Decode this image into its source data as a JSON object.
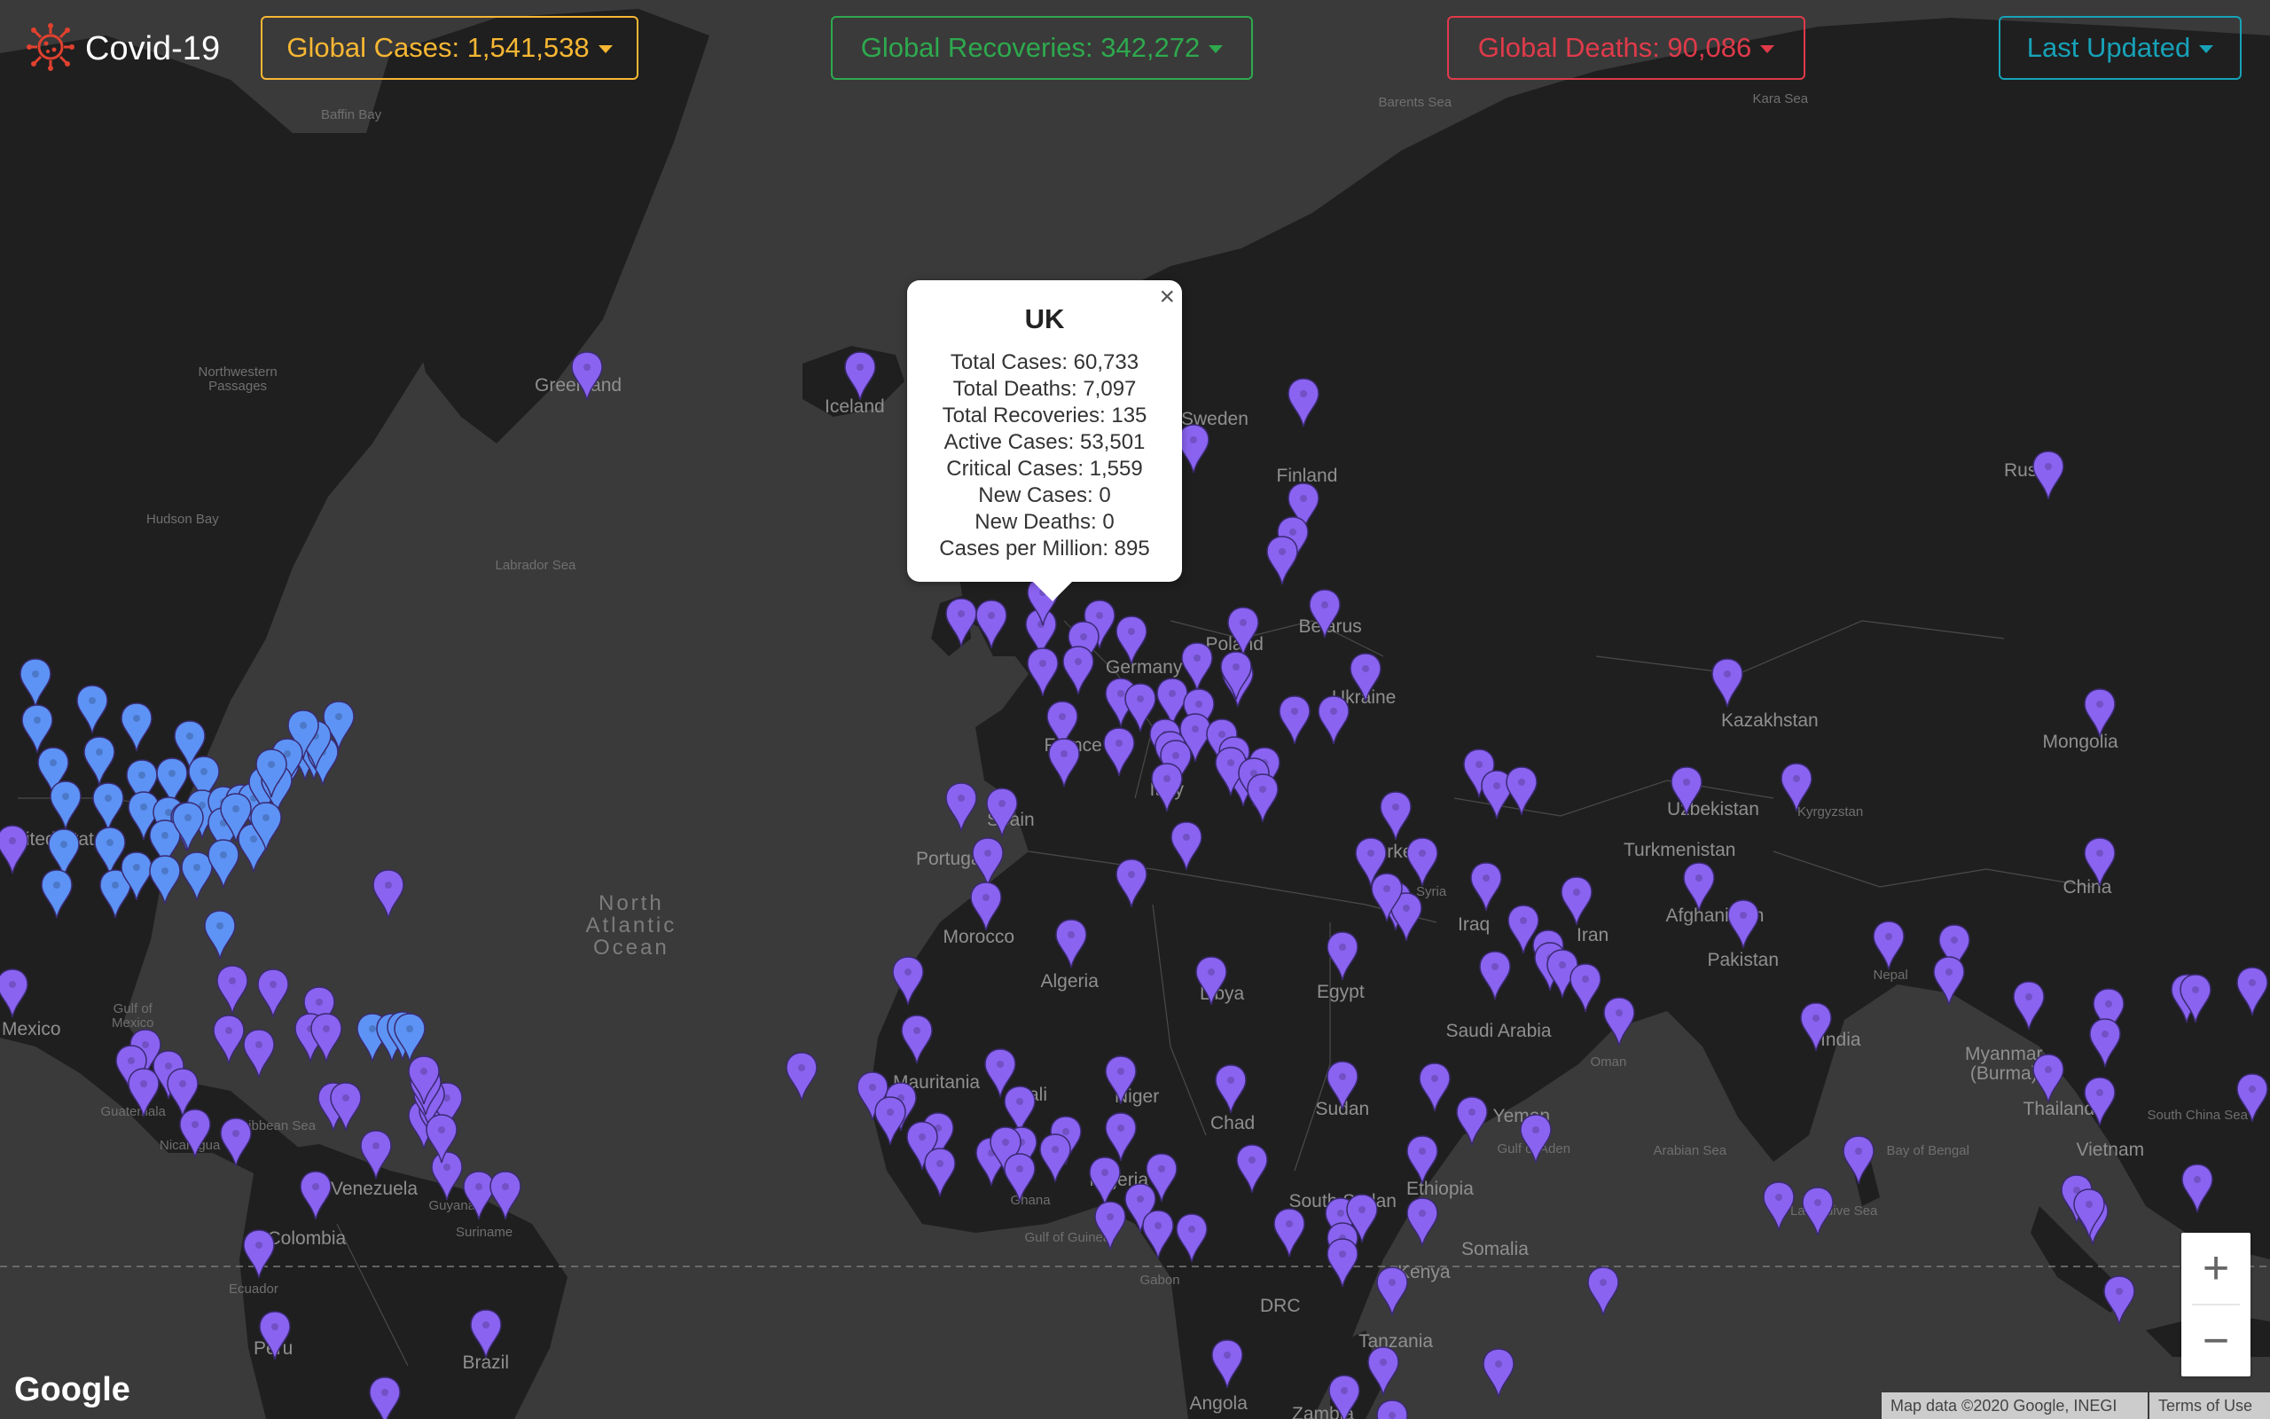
{
  "header": {
    "app_title": "Covid-19",
    "logo_icon": "virus-icon",
    "global_cases": "Global Cases: 1,541,538",
    "global_recoveries": "Global Recoveries: 342,272",
    "global_deaths": "Global Deaths: 90,086",
    "last_updated": "Last Updated"
  },
  "colors": {
    "cases": "#f7b733",
    "recoveries": "#2ea94e",
    "deaths": "#e03a4a",
    "updated": "#17a2b8",
    "pin_purple": "#8a63f0",
    "pin_blue": "#5d93f5"
  },
  "popup": {
    "country": "UK",
    "lines": [
      "Total Cases: 60,733",
      "Total Deaths: 7,097",
      "Total Recoveries: 135",
      "Active Cases: 53,501",
      "Critical Cases: 1,559",
      "New Cases: 0",
      "New Deaths: 0",
      "Cases per Million: 895"
    ],
    "close_icon": "close-icon"
  },
  "map": {
    "labels": [
      "Baffin Bay",
      "Barents Sea",
      "Kara Sea",
      "Greenland",
      "Iceland",
      "Northwestern Passages",
      "Hudson Bay",
      "Labrador Sea",
      "Finland",
      "Sweden",
      "Russia",
      "Poland",
      "Belarus",
      "Germany",
      "Ukraine",
      "France",
      "Spain",
      "Portugal",
      "Italy",
      "Kazakhstan",
      "Mongolia",
      "Uzbekistan",
      "Kyrgyzstan",
      "Turkmenistan",
      "Turkey",
      "Syria",
      "Iraq",
      "Iran",
      "Afghanistan",
      "Pakistan",
      "China",
      "Nepal",
      "India",
      "Myanmar (Burma)",
      "Thailand",
      "Vietnam",
      "South China Sea",
      "Bay of Bengal",
      "Arabian Sea",
      "Laccadive Sea",
      "Saudi Arabia",
      "Oman",
      "Yemen",
      "Gulf of Aden",
      "Egypt",
      "Libya",
      "Algeria",
      "Morocco",
      "Mauritania",
      "Mali",
      "Niger",
      "Chad",
      "Sudan",
      "South Sudan",
      "Ethiopia",
      "Somalia",
      "Kenya",
      "Nigeria",
      "Ghana",
      "Gulf of Guinea",
      "Gabon",
      "DRC",
      "Tanzania",
      "Angola",
      "Zambia",
      "North Atlantic Ocean",
      "Gulf of Mexico",
      "Mexico",
      "United States",
      "Caribbean Sea",
      "Guatemala",
      "Nicaragua",
      "Venezuela",
      "Colombia",
      "Guyana",
      "Suriname",
      "Ecuador",
      "Peru",
      "Brazil"
    ]
  },
  "zoom": {
    "in_label": "+",
    "out_label": "−"
  },
  "footer": {
    "google_logo": "Google",
    "attribution": "Map data ©2020 Google, INEGI",
    "terms": "Terms of Use"
  }
}
